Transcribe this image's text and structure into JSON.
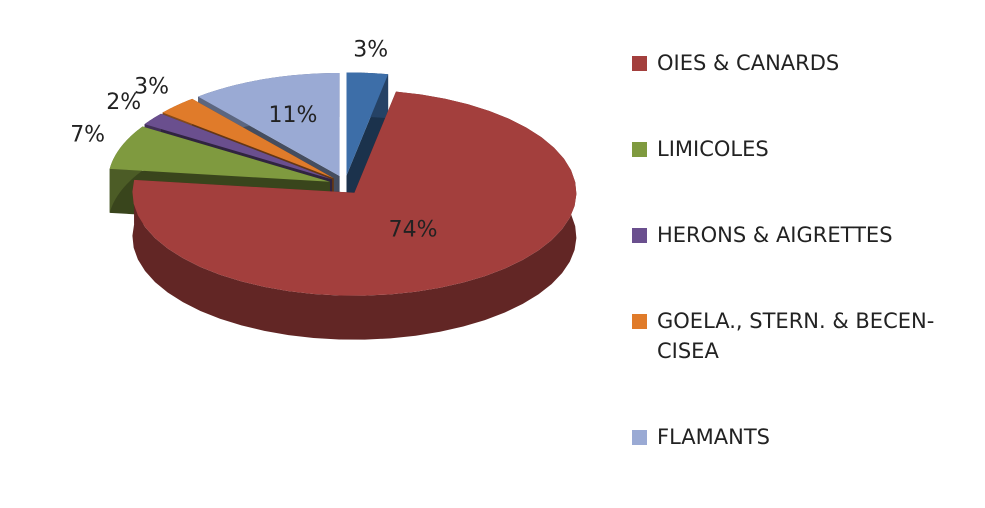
{
  "chart_data": {
    "type": "pie3d",
    "categories": [
      "OIES & CANARDS",
      "LIMICOLES",
      "HERONS & AIGRETTES",
      "GOELA., STERN. & BECEN-CISEA",
      "FLAMANTS",
      null
    ],
    "values": [
      74,
      7,
      2,
      3,
      11,
      3
    ],
    "value_labels": [
      "74%",
      "7%",
      "2%",
      "3%",
      "11%",
      "3%"
    ],
    "colors": [
      "#a33f3d",
      "#7f9a3f",
      "#6a4f8e",
      "#e07b2a",
      "#9aaad4",
      "#3d6ea8"
    ],
    "legend": "right"
  }
}
